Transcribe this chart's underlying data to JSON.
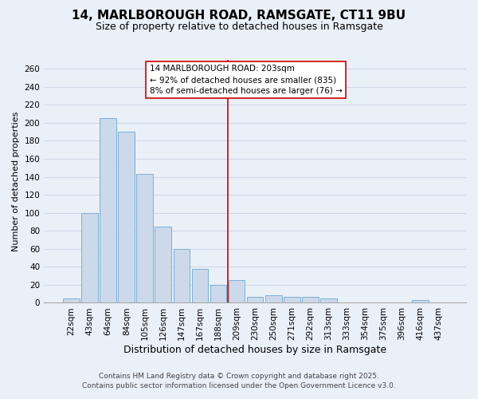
{
  "title": "14, MARLBOROUGH ROAD, RAMSGATE, CT11 9BU",
  "subtitle": "Size of property relative to detached houses in Ramsgate",
  "xlabel": "Distribution of detached houses by size in Ramsgate",
  "ylabel": "Number of detached properties",
  "categories": [
    "22sqm",
    "43sqm",
    "64sqm",
    "84sqm",
    "105sqm",
    "126sqm",
    "147sqm",
    "167sqm",
    "188sqm",
    "209sqm",
    "230sqm",
    "250sqm",
    "271sqm",
    "292sqm",
    "313sqm",
    "333sqm",
    "354sqm",
    "375sqm",
    "396sqm",
    "416sqm",
    "437sqm"
  ],
  "values": [
    5,
    100,
    205,
    190,
    143,
    85,
    60,
    38,
    20,
    25,
    7,
    8,
    7,
    7,
    5,
    0,
    0,
    0,
    0,
    3,
    0
  ],
  "bar_color": "#ccd9ea",
  "bar_edge_color": "#7bafd4",
  "vline_color": "#cc0000",
  "vline_pos": 8.5,
  "ylim": [
    0,
    270
  ],
  "yticks": [
    0,
    20,
    40,
    60,
    80,
    100,
    120,
    140,
    160,
    180,
    200,
    220,
    240,
    260
  ],
  "grid_color": "#d0d8e8",
  "background_color": "#eaf0f8",
  "annotation_title": "14 MARLBOROUGH ROAD: 203sqm",
  "annotation_line1": "← 92% of detached houses are smaller (835)",
  "annotation_line2": "8% of semi-detached houses are larger (76) →",
  "annotation_box_color": "#ffffff",
  "annotation_border_color": "#cc0000",
  "footer_line1": "Contains HM Land Registry data © Crown copyright and database right 2025.",
  "footer_line2": "Contains public sector information licensed under the Open Government Licence v3.0.",
  "title_fontsize": 11,
  "subtitle_fontsize": 9,
  "xlabel_fontsize": 9,
  "ylabel_fontsize": 8,
  "tick_fontsize": 7.5,
  "annotation_fontsize": 7.5,
  "footer_fontsize": 6.5
}
